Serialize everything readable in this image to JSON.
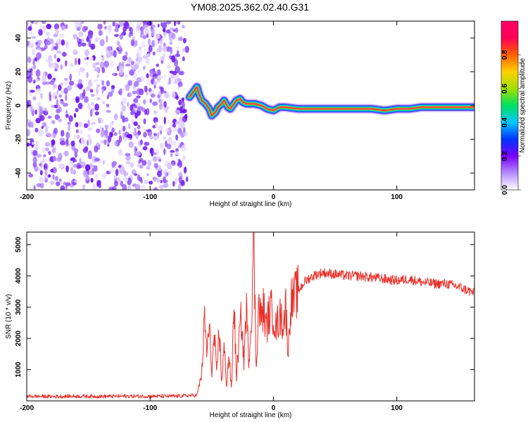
{
  "title": "YM08.2025.362.02.40.G31",
  "chart_data": [
    {
      "type": "heatmap",
      "title": "YM08.2025.362.02.40.G31",
      "xlabel": "Height of straight line (km)",
      "ylabel": "Frequency (Hz)",
      "xlim": [
        -200,
        163
      ],
      "ylim": [
        -50,
        50
      ],
      "xticks": [
        -200,
        -100,
        0,
        100
      ],
      "yticks": [
        -40,
        -20,
        0,
        20,
        40
      ],
      "colorbar": {
        "label": "Normalized spectral amplitude",
        "range": [
          0,
          1
        ],
        "ticks": [
          "0.0",
          "0.2",
          "0.4",
          "0.6",
          "0.8"
        ],
        "colormap": [
          "#ffffff",
          "#b48cff",
          "#7a00ff",
          "#0033ff",
          "#00c8ff",
          "#00e060",
          "#a0e000",
          "#ffd000",
          "#ff6000",
          "#ff0055",
          "#ff0066"
        ]
      },
      "noise_region_x": [
        -200,
        -70
      ],
      "signal_track": {
        "x": [
          -68,
          -65,
          -62,
          -60,
          -58,
          -55,
          -52,
          -50,
          -47,
          -45,
          -42,
          -40,
          -37,
          -35,
          -32,
          -30,
          -27,
          -25,
          -22,
          -20,
          -15,
          -10,
          -5,
          0,
          5,
          10,
          20,
          40,
          60,
          80,
          90,
          100,
          110,
          120,
          130,
          140,
          163
        ],
        "y": [
          5,
          8,
          11,
          6,
          3,
          1,
          -2,
          -6,
          -4,
          -1,
          1,
          3,
          -1,
          -2,
          1,
          3,
          4,
          2,
          1,
          1,
          1,
          0,
          -2,
          -3,
          -1,
          -1,
          -2,
          -2,
          -2,
          -2,
          -3,
          -2,
          -2,
          -1,
          -1,
          -1,
          -1
        ]
      }
    },
    {
      "type": "line",
      "xlabel": "Height of straight line (km)",
      "ylabel": "SNR (10 * v/v)",
      "xlim": [
        -200,
        163
      ],
      "ylim": [
        0,
        5400
      ],
      "xticks": [
        -200,
        -100,
        0,
        100
      ],
      "yticks": [
        1000,
        2000,
        3000,
        4000,
        5000
      ],
      "series": [
        {
          "name": "SNR",
          "color": "#e8302a",
          "x": [
            -200,
            -180,
            -160,
            -140,
            -120,
            -100,
            -80,
            -62,
            -58,
            -56,
            -54,
            -52,
            -50,
            -48,
            -46,
            -44,
            -42,
            -40,
            -38,
            -36,
            -34,
            -32,
            -30,
            -28,
            -26,
            -24,
            -22,
            -20,
            -18,
            -16,
            -14,
            -12,
            -10,
            -8,
            -6,
            -4,
            -2,
            0,
            2,
            4,
            6,
            8,
            10,
            12,
            14,
            16,
            18,
            20,
            25,
            30,
            35,
            40,
            50,
            60,
            70,
            80,
            90,
            100,
            110,
            120,
            130,
            140,
            150,
            163
          ],
          "y": [
            150,
            140,
            150,
            145,
            150,
            150,
            150,
            180,
            900,
            2600,
            1600,
            2300,
            900,
            2100,
            800,
            2400,
            600,
            1700,
            500,
            1500,
            300,
            3300,
            700,
            1900,
            2700,
            1200,
            3000,
            1300,
            2500,
            5400,
            1000,
            3100,
            2600,
            3000,
            2300,
            2700,
            2900,
            2800,
            2300,
            2600,
            2700,
            2500,
            3000,
            1500,
            3200,
            3200,
            3400,
            3500,
            3800,
            3950,
            4050,
            4100,
            4050,
            4000,
            4000,
            3950,
            3900,
            3850,
            3900,
            3800,
            3750,
            3750,
            3650,
            3450
          ]
        }
      ]
    }
  ]
}
